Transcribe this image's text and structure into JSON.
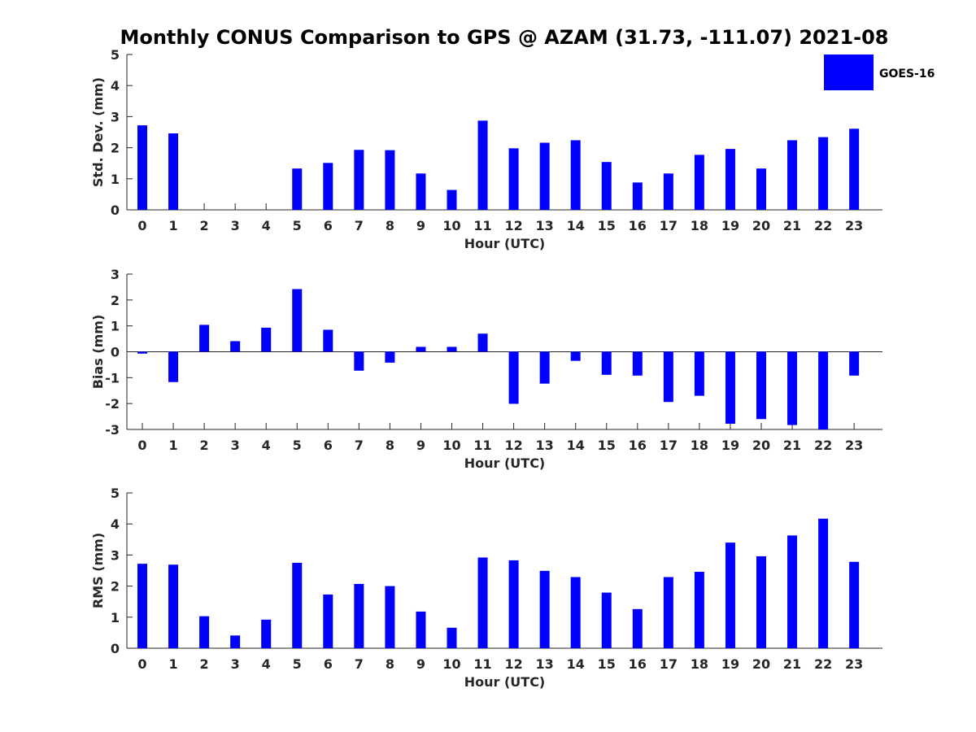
{
  "title": "Monthly CONUS Comparison to GPS @ AZAM (31.73, -111.07) 2021-08",
  "legend": {
    "label": "GOES-16",
    "color": "#0000ff"
  },
  "chart_data": [
    {
      "type": "bar",
      "name": "std-dev",
      "series_name": "GOES-16",
      "color": "#0000ff",
      "categories": [
        "0",
        "1",
        "2",
        "3",
        "4",
        "5",
        "6",
        "7",
        "8",
        "9",
        "10",
        "11",
        "12",
        "13",
        "14",
        "15",
        "16",
        "17",
        "18",
        "19",
        "20",
        "21",
        "22",
        "23"
      ],
      "values": [
        2.72,
        2.46,
        null,
        null,
        null,
        1.33,
        1.51,
        1.93,
        1.92,
        1.17,
        0.64,
        2.87,
        1.98,
        2.16,
        2.24,
        1.54,
        0.88,
        1.17,
        1.77,
        1.96,
        1.33,
        2.24,
        2.34,
        2.61
      ],
      "xlabel": "Hour (UTC)",
      "ylabel": "Std. Dev. (mm)",
      "ylim": [
        0,
        5
      ],
      "yticks": [
        "0",
        "1",
        "2",
        "3",
        "4",
        "5"
      ]
    },
    {
      "type": "bar",
      "name": "bias",
      "series_name": "GOES-16",
      "color": "#0000ff",
      "categories": [
        "0",
        "1",
        "2",
        "3",
        "4",
        "5",
        "6",
        "7",
        "8",
        "9",
        "10",
        "11",
        "12",
        "13",
        "14",
        "15",
        "16",
        "17",
        "18",
        "19",
        "20",
        "21",
        "22",
        "23"
      ],
      "values": [
        -0.07,
        -1.17,
        1.04,
        0.41,
        0.93,
        2.42,
        0.85,
        -0.73,
        -0.42,
        0.19,
        0.19,
        0.7,
        -2.01,
        -1.23,
        -0.35,
        -0.89,
        -0.92,
        -1.94,
        -1.7,
        -2.78,
        -2.6,
        -2.83,
        -3.0,
        -0.92
      ],
      "xlabel": "Hour (UTC)",
      "ylabel": "Bias (mm)",
      "ylim": [
        -3,
        3
      ],
      "yticks": [
        "-3",
        "-2",
        "-1",
        "0",
        "1",
        "2",
        "3"
      ]
    },
    {
      "type": "bar",
      "name": "rms",
      "series_name": "GOES-16",
      "color": "#0000ff",
      "categories": [
        "0",
        "1",
        "2",
        "3",
        "4",
        "5",
        "6",
        "7",
        "8",
        "9",
        "10",
        "11",
        "12",
        "13",
        "14",
        "15",
        "16",
        "17",
        "18",
        "19",
        "20",
        "21",
        "22",
        "23"
      ],
      "values": [
        2.72,
        2.69,
        1.03,
        0.41,
        0.92,
        2.75,
        1.73,
        2.07,
        2.0,
        1.18,
        0.66,
        2.92,
        2.83,
        2.49,
        2.29,
        1.79,
        1.26,
        2.29,
        2.46,
        3.4,
        2.96,
        3.63,
        4.17,
        2.78
      ],
      "xlabel": "Hour (UTC)",
      "ylabel": "RMS (mm)",
      "ylim": [
        0,
        5
      ],
      "yticks": [
        "0",
        "1",
        "2",
        "3",
        "4",
        "5"
      ]
    }
  ]
}
